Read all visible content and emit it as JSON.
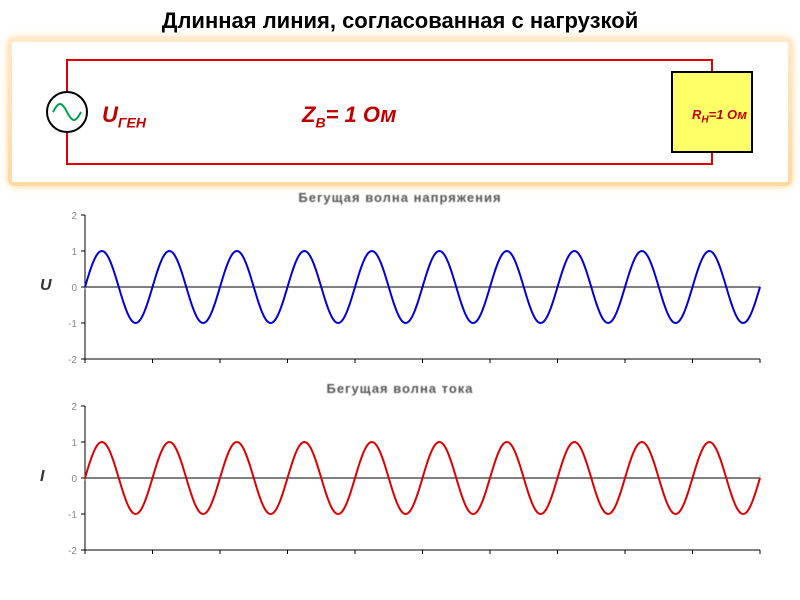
{
  "page": {
    "title": "Длинная линия, согласованная с нагрузкой"
  },
  "circuit": {
    "source_label_main": "U",
    "source_label_sub": "ГЕН",
    "impedance_label_main": "Z",
    "impedance_label_sub": "В",
    "impedance_value": "= 1 Ом",
    "load_label_main": "R",
    "load_label_sub": "Н",
    "load_value": "=1 Ом",
    "wire_color": "#e00000",
    "wire_width": 2,
    "load_fill": "#ffff66",
    "load_stroke": "#000000",
    "source_stroke": "#000000",
    "source_fill": "#ffffff",
    "source_wave_color": "#00a050"
  },
  "chart_voltage": {
    "type": "line",
    "title": "Бегущая волна напряжения",
    "ylabel": "U",
    "color": "#0000dd",
    "line_width": 2,
    "amplitude": 1,
    "cycles": 10,
    "xlim": [
      0,
      10
    ],
    "ylim": [
      -2,
      2
    ],
    "ytick_step": 1,
    "xtick_step": 1,
    "axis_color": "#000000",
    "tick_color": "#888888",
    "background": "#ffffff"
  },
  "chart_current": {
    "type": "line",
    "title": "Бегущая волна тока",
    "ylabel": "I",
    "color": "#dd0000",
    "line_width": 2,
    "amplitude": 1,
    "cycles": 10,
    "xlim": [
      0,
      10
    ],
    "ylim": [
      -2,
      2
    ],
    "ytick_step": 1,
    "xtick_step": 1,
    "axis_color": "#000000",
    "tick_color": "#888888",
    "background": "#ffffff"
  }
}
